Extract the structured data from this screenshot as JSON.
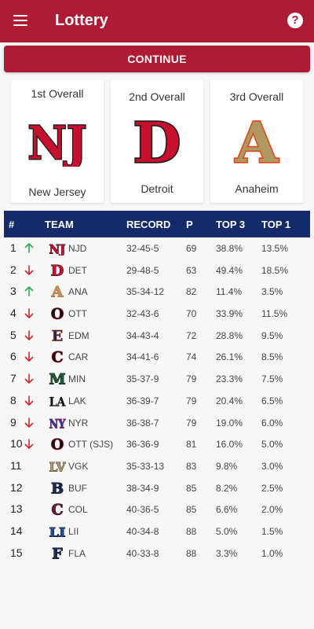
{
  "appbar": {
    "title": "Lottery",
    "menu_icon": "menu-icon",
    "help_icon": "help-icon",
    "help_glyph": "?"
  },
  "continue_label": "CONTINUE",
  "colors": {
    "brand_red": "#ad1c34",
    "header_navy": "#142a6b",
    "up_green": "#2eab4e",
    "down_red": "#cc2a2a"
  },
  "picks": [
    {
      "title": "1st Overall",
      "team": "New Jersey",
      "logo_text": "NJ",
      "logo_fill": "#c8102e",
      "logo_stroke": "#1a1a1a"
    },
    {
      "title": "2nd Overall",
      "team": "Detroit",
      "logo_text": "D",
      "logo_fill": "#c8102e",
      "logo_stroke": "#1a1a1a"
    },
    {
      "title": "3rd Overall",
      "team": "Anaheim",
      "logo_text": "A",
      "logo_fill": "#b09862",
      "logo_stroke": "#e04a1a"
    }
  ],
  "table": {
    "headers": {
      "rank": "#",
      "team": "TEAM",
      "record": "RECORD",
      "points": "P",
      "top3": "TOP 3",
      "top1": "TOP 1"
    },
    "rows": [
      {
        "rank": "1",
        "move": "up",
        "logo_text": "NJ",
        "logo_fill": "#c8102e",
        "logo_stroke": "#111",
        "abbr": "NJD",
        "record": "32-45-5",
        "points": "69",
        "top3": "38.8%",
        "top1": "13.5%"
      },
      {
        "rank": "2",
        "move": "down",
        "logo_text": "D",
        "logo_fill": "#c8102e",
        "logo_stroke": "#111",
        "abbr": "DET",
        "record": "29-48-5",
        "points": "63",
        "top3": "49.4%",
        "top1": "18.5%"
      },
      {
        "rank": "3",
        "move": "up",
        "logo_text": "A",
        "logo_fill": "#b09862",
        "logo_stroke": "#e04a1a",
        "abbr": "ANA",
        "record": "35-34-12",
        "points": "82",
        "top3": "11.4%",
        "top1": "3.5%"
      },
      {
        "rank": "4",
        "move": "down",
        "logo_text": "O",
        "logo_fill": "#111111",
        "logo_stroke": "#c8102e",
        "abbr": "OTT",
        "record": "32-43-6",
        "points": "70",
        "top3": "33.9%",
        "top1": "11.5%"
      },
      {
        "rank": "5",
        "move": "down",
        "logo_text": "E",
        "logo_fill": "#1d2a5c",
        "logo_stroke": "#e86a1a",
        "abbr": "EDM",
        "record": "34-43-4",
        "points": "72",
        "top3": "28.8%",
        "top1": "9.5%"
      },
      {
        "rank": "6",
        "move": "down",
        "logo_text": "C",
        "logo_fill": "#111111",
        "logo_stroke": "#c8102e",
        "abbr": "CAR",
        "record": "34-41-6",
        "points": "74",
        "top3": "26.1%",
        "top1": "8.5%"
      },
      {
        "rank": "7",
        "move": "down",
        "logo_text": "M",
        "logo_fill": "#1a5c3a",
        "logo_stroke": "#111",
        "abbr": "MIN",
        "record": "35-37-9",
        "points": "79",
        "top3": "23.3%",
        "top1": "7.5%"
      },
      {
        "rank": "8",
        "move": "down",
        "logo_text": "LA",
        "logo_fill": "#111111",
        "logo_stroke": "#aaa",
        "abbr": "LAK",
        "record": "36-39-7",
        "points": "79",
        "top3": "20.4%",
        "top1": "6.5%"
      },
      {
        "rank": "9",
        "move": "down",
        "logo_text": "NY",
        "logo_fill": "#1d3fa0",
        "logo_stroke": "#c8102e",
        "abbr": "NYR",
        "record": "36-38-7",
        "points": "79",
        "top3": "19.0%",
        "top1": "6.0%"
      },
      {
        "rank": "10",
        "move": "down",
        "logo_text": "O",
        "logo_fill": "#111111",
        "logo_stroke": "#c8102e",
        "abbr": "OTT (SJS)",
        "record": "36-36-9",
        "points": "81",
        "top3": "16.0%",
        "top1": "5.0%"
      },
      {
        "rank": "11",
        "move": "none",
        "logo_text": "LV",
        "logo_fill": "#b09862",
        "logo_stroke": "#333",
        "abbr": "VGK",
        "record": "35-33-13",
        "points": "83",
        "top3": "9.8%",
        "top1": "3.0%"
      },
      {
        "rank": "12",
        "move": "none",
        "logo_text": "B",
        "logo_fill": "#1d2a5c",
        "logo_stroke": "#111",
        "abbr": "BUF",
        "record": "38-34-9",
        "points": "85",
        "top3": "8.2%",
        "top1": "2.5%"
      },
      {
        "rank": "13",
        "move": "none",
        "logo_text": "C",
        "logo_fill": "#6a1a3a",
        "logo_stroke": "#111",
        "abbr": "COL",
        "record": "40-36-5",
        "points": "85",
        "top3": "6.6%",
        "top1": "2.0%"
      },
      {
        "rank": "14",
        "move": "none",
        "logo_text": "LI",
        "logo_fill": "#1d4fa0",
        "logo_stroke": "#111",
        "abbr": "LII",
        "record": "40-34-8",
        "points": "88",
        "top3": "5.0%",
        "top1": "1.5%"
      },
      {
        "rank": "15",
        "move": "none",
        "logo_text": "F",
        "logo_fill": "#1d2a5c",
        "logo_stroke": "#111",
        "abbr": "FLA",
        "record": "40-33-8",
        "points": "88",
        "top3": "3.3%",
        "top1": "1.0%"
      }
    ]
  }
}
